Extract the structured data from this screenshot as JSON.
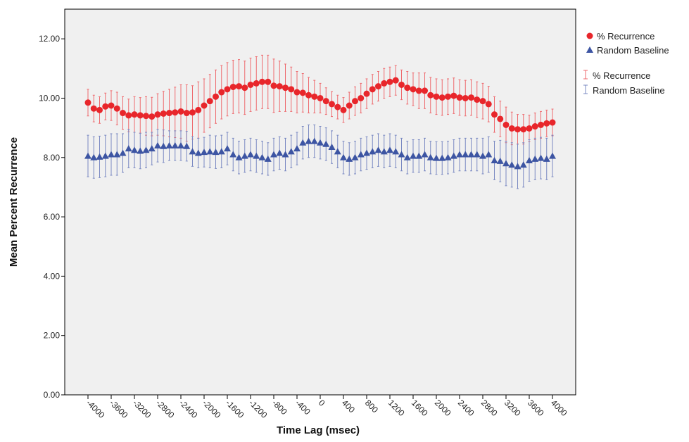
{
  "chart_data": {
    "type": "scatter",
    "title": "",
    "xlabel": "Time Lag (msec)",
    "ylabel": "Mean Percent Recurrence",
    "xlim": [
      -4400,
      4400
    ],
    "ylim": [
      0,
      13
    ],
    "y_ticks": [
      0,
      2,
      4,
      6,
      8,
      10,
      12
    ],
    "y_tick_labels": [
      "0.00",
      "2.00",
      "4.00",
      "6.00",
      "8.00",
      "10.00",
      "12.00"
    ],
    "x_ticks": [
      -4000,
      -3600,
      -3200,
      -2800,
      -2400,
      -2000,
      -1600,
      -1200,
      -800,
      -400,
      0,
      400,
      800,
      1200,
      1600,
      2000,
      2400,
      2800,
      3200,
      3600,
      4000
    ],
    "x_tick_labels": [
      "-4000",
      "-3600",
      "-3200",
      "-2800",
      "-2400",
      "-2000",
      "-1600",
      "-1200",
      "-800",
      "-400",
      "0",
      "400",
      "800",
      "1200",
      "1600",
      "2000",
      "2400",
      "2800",
      "3200",
      "3600",
      "4000"
    ],
    "x": [
      -4000,
      -3900,
      -3800,
      -3700,
      -3600,
      -3500,
      -3400,
      -3300,
      -3200,
      -3100,
      -3000,
      -2900,
      -2800,
      -2700,
      -2600,
      -2500,
      -2400,
      -2300,
      -2200,
      -2100,
      -2000,
      -1900,
      -1800,
      -1700,
      -1600,
      -1500,
      -1400,
      -1300,
      -1200,
      -1100,
      -1000,
      -900,
      -800,
      -700,
      -600,
      -500,
      -400,
      -300,
      -200,
      -100,
      0,
      100,
      200,
      300,
      400,
      500,
      600,
      700,
      800,
      900,
      1000,
      1100,
      1200,
      1300,
      1400,
      1500,
      1600,
      1700,
      1800,
      1900,
      2000,
      2100,
      2200,
      2300,
      2400,
      2500,
      2600,
      2700,
      2800,
      2900,
      3000,
      3100,
      3200,
      3300,
      3400,
      3500,
      3600,
      3700,
      3800,
      3900,
      4000
    ],
    "background_color": "#f0f0f0",
    "grid": false,
    "legend_position": "top-right",
    "series": [
      {
        "name": "% Recurrence",
        "marker": "circle",
        "color": "#e8262b",
        "values": [
          9.85,
          9.65,
          9.6,
          9.72,
          9.75,
          9.65,
          9.5,
          9.42,
          9.45,
          9.42,
          9.4,
          9.38,
          9.45,
          9.48,
          9.5,
          9.52,
          9.55,
          9.5,
          9.52,
          9.6,
          9.75,
          9.9,
          10.05,
          10.2,
          10.3,
          10.38,
          10.4,
          10.35,
          10.45,
          10.5,
          10.55,
          10.55,
          10.42,
          10.4,
          10.35,
          10.3,
          10.2,
          10.18,
          10.1,
          10.05,
          10.0,
          9.9,
          9.8,
          9.7,
          9.6,
          9.75,
          9.9,
          10.0,
          10.15,
          10.3,
          10.4,
          10.5,
          10.55,
          10.6,
          10.45,
          10.35,
          10.3,
          10.25,
          10.25,
          10.1,
          10.05,
          10.02,
          10.05,
          10.08,
          10.02,
          10.0,
          10.02,
          9.95,
          9.9,
          9.8,
          9.45,
          9.3,
          9.1,
          8.98,
          8.95,
          8.95,
          8.98,
          9.05,
          9.1,
          9.15,
          9.18
        ],
        "error": [
          0.45,
          0.45,
          0.45,
          0.45,
          0.5,
          0.55,
          0.55,
          0.55,
          0.6,
          0.6,
          0.65,
          0.65,
          0.7,
          0.75,
          0.8,
          0.85,
          0.9,
          0.95,
          0.9,
          0.95,
          0.9,
          0.9,
          0.9,
          0.9,
          0.9,
          0.9,
          0.9,
          0.9,
          0.9,
          0.9,
          0.9,
          0.9,
          0.9,
          0.85,
          0.8,
          0.75,
          0.7,
          0.65,
          0.6,
          0.55,
          0.5,
          0.45,
          0.42,
          0.4,
          0.42,
          0.45,
          0.48,
          0.5,
          0.5,
          0.5,
          0.5,
          0.5,
          0.5,
          0.5,
          0.5,
          0.55,
          0.55,
          0.6,
          0.6,
          0.6,
          0.6,
          0.6,
          0.6,
          0.6,
          0.6,
          0.6,
          0.6,
          0.6,
          0.6,
          0.6,
          0.6,
          0.6,
          0.6,
          0.55,
          0.5,
          0.5,
          0.45,
          0.45,
          0.45,
          0.45,
          0.45
        ]
      },
      {
        "name": "Random Baseline",
        "marker": "triangle",
        "color": "#3d55a3",
        "values": [
          8.05,
          8.0,
          8.02,
          8.05,
          8.1,
          8.1,
          8.15,
          8.3,
          8.25,
          8.22,
          8.25,
          8.3,
          8.4,
          8.38,
          8.4,
          8.4,
          8.4,
          8.38,
          8.2,
          8.15,
          8.18,
          8.2,
          8.18,
          8.2,
          8.3,
          8.1,
          8.0,
          8.05,
          8.1,
          8.05,
          8.0,
          7.95,
          8.1,
          8.15,
          8.1,
          8.2,
          8.3,
          8.5,
          8.55,
          8.55,
          8.5,
          8.45,
          8.35,
          8.2,
          8.0,
          7.95,
          8.0,
          8.1,
          8.15,
          8.2,
          8.25,
          8.2,
          8.25,
          8.2,
          8.1,
          8.0,
          8.05,
          8.05,
          8.1,
          8.0,
          7.98,
          7.98,
          8.0,
          8.05,
          8.1,
          8.1,
          8.1,
          8.1,
          8.05,
          8.1,
          7.9,
          7.88,
          7.8,
          7.75,
          7.7,
          7.75,
          7.9,
          7.95,
          7.98,
          7.95,
          8.05
        ],
        "error": [
          0.7,
          0.7,
          0.7,
          0.7,
          0.7,
          0.7,
          0.65,
          0.65,
          0.6,
          0.6,
          0.6,
          0.55,
          0.55,
          0.55,
          0.5,
          0.5,
          0.5,
          0.5,
          0.5,
          0.5,
          0.5,
          0.55,
          0.55,
          0.55,
          0.55,
          0.55,
          0.55,
          0.55,
          0.55,
          0.55,
          0.55,
          0.55,
          0.55,
          0.55,
          0.55,
          0.55,
          0.55,
          0.55,
          0.55,
          0.55,
          0.55,
          0.55,
          0.55,
          0.55,
          0.55,
          0.55,
          0.55,
          0.55,
          0.55,
          0.55,
          0.55,
          0.55,
          0.55,
          0.55,
          0.55,
          0.55,
          0.55,
          0.55,
          0.55,
          0.55,
          0.55,
          0.55,
          0.55,
          0.55,
          0.55,
          0.55,
          0.55,
          0.55,
          0.6,
          0.6,
          0.65,
          0.7,
          0.75,
          0.75,
          0.75,
          0.75,
          0.7,
          0.7,
          0.7,
          0.7,
          0.7
        ]
      }
    ],
    "legend": {
      "markers": [
        "% Recurrence",
        "Random Baseline"
      ],
      "error_bars": [
        "% Recurrence",
        "Random Baseline"
      ]
    }
  }
}
